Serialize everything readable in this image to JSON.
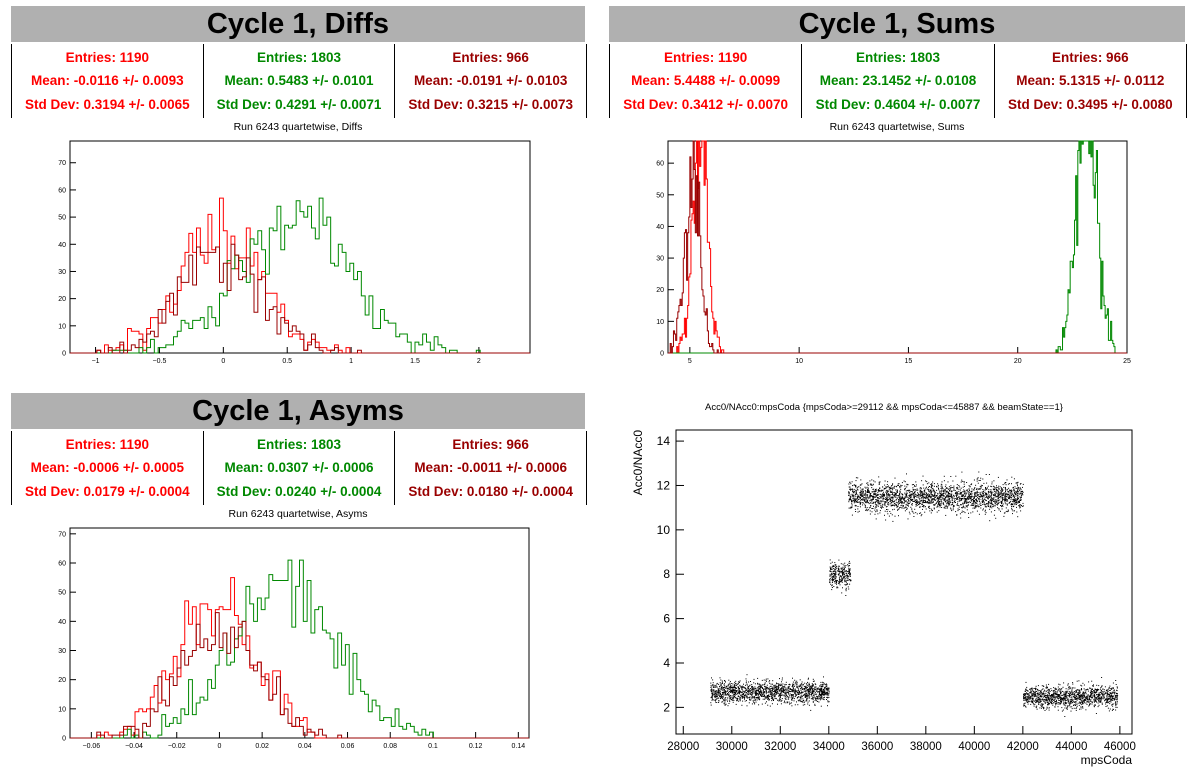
{
  "colors": {
    "red": "#ff0000",
    "green": "#008800",
    "darkred": "#990000",
    "title_bg": "#b0b0b0"
  },
  "panels": [
    {
      "title": "Cycle 1, Diffs",
      "stats": [
        {
          "entries": "Entries: 1190",
          "mean": "Mean: -0.0116 +/- 0.0093",
          "std": "Std Dev: 0.3194 +/- 0.0065",
          "color": "#ff0000"
        },
        {
          "entries": "Entries: 1803",
          "mean": "Mean: 0.5483 +/- 0.0101",
          "std": "Std Dev: 0.4291 +/- 0.0071",
          "color": "#008800"
        },
        {
          "entries": "Entries: 966",
          "mean": "Mean: -0.0191 +/- 0.0103",
          "std": "Std Dev: 0.3215 +/- 0.0073",
          "color": "#990000"
        }
      ],
      "subtitle": "Run 6243 quartetwise, Diffs"
    },
    {
      "title": "Cycle 1, Sums",
      "stats": [
        {
          "entries": "Entries: 1190",
          "mean": "Mean: 5.4488 +/- 0.0099",
          "std": "Std Dev: 0.3412 +/- 0.0070",
          "color": "#ff0000"
        },
        {
          "entries": "Entries: 1803",
          "mean": "Mean: 23.1452 +/- 0.0108",
          "std": "Std Dev: 0.4604 +/- 0.0077",
          "color": "#008800"
        },
        {
          "entries": "Entries: 966",
          "mean": "Mean: 5.1315 +/- 0.0112",
          "std": "Std Dev: 0.3495 +/- 0.0080",
          "color": "#990000"
        }
      ],
      "subtitle": "Run 6243 quartetwise, Sums"
    },
    {
      "title": "Cycle 1, Asyms",
      "stats": [
        {
          "entries": "Entries: 1190",
          "mean": "Mean: -0.0006 +/- 0.0005",
          "std": "Std Dev: 0.0179 +/- 0.0004",
          "color": "#ff0000"
        },
        {
          "entries": "Entries: 1803",
          "mean": "Mean: 0.0307 +/- 0.0006",
          "std": "Std Dev: 0.0240 +/- 0.0004",
          "color": "#008800"
        },
        {
          "entries": "Entries: 966",
          "mean": "Mean: -0.0011 +/- 0.0006",
          "std": "Std Dev: 0.0180 +/- 0.0004",
          "color": "#990000"
        }
      ],
      "subtitle": "Run 6243 quartetwise, Asyms"
    }
  ],
  "chart_data": [
    {
      "type": "histogram",
      "name": "diffs",
      "xlim": [
        -1.2,
        2.4
      ],
      "ylim": [
        0,
        78
      ],
      "xticks": [
        -1,
        -0.5,
        0,
        0.5,
        1,
        1.5,
        2
      ],
      "xtick_labels": [
        "−1",
        "−0.5",
        "0",
        "0.5",
        "1",
        "1.5",
        "2"
      ],
      "yticks": [
        0,
        10,
        20,
        30,
        40,
        50,
        60,
        70
      ],
      "series": [
        {
          "mean": -0.0116,
          "std": 0.3194,
          "entries": 1190,
          "color": "#ff0000"
        },
        {
          "mean": 0.5483,
          "std": 0.4291,
          "entries": 1803,
          "color": "#008800"
        },
        {
          "mean": -0.0191,
          "std": 0.3215,
          "entries": 966,
          "color": "#990000"
        }
      ]
    },
    {
      "type": "histogram",
      "name": "sums",
      "xlim": [
        4,
        25
      ],
      "ylim": [
        0,
        67
      ],
      "xticks": [
        5,
        10,
        15,
        20,
        25
      ],
      "xtick_labels": [
        "5",
        "10",
        "15",
        "20",
        "25"
      ],
      "yticks": [
        0,
        10,
        20,
        30,
        40,
        50,
        60
      ],
      "series": [
        {
          "mean": 5.4488,
          "std": 0.3412,
          "entries": 1190,
          "color": "#ff0000"
        },
        {
          "mean": 23.1452,
          "std": 0.4604,
          "entries": 1803,
          "color": "#008800"
        },
        {
          "mean": 5.1315,
          "std": 0.3495,
          "entries": 966,
          "color": "#990000"
        }
      ]
    },
    {
      "type": "histogram",
      "name": "asyms",
      "xlim": [
        -0.07,
        0.145
      ],
      "ylim": [
        0,
        72
      ],
      "xticks": [
        -0.06,
        -0.04,
        -0.02,
        0,
        0.02,
        0.04,
        0.06,
        0.08,
        0.1,
        0.12,
        0.14
      ],
      "xtick_labels": [
        "−0.06",
        "−0.04",
        "−0.02",
        "0",
        "0.02",
        "0.04",
        "0.06",
        "0.08",
        "0.1",
        "0.12",
        "0.14"
      ],
      "yticks": [
        0,
        10,
        20,
        30,
        40,
        50,
        60,
        70
      ],
      "series": [
        {
          "mean": -0.0006,
          "std": 0.0179,
          "entries": 1190,
          "color": "#ff0000"
        },
        {
          "mean": 0.0307,
          "std": 0.024,
          "entries": 1803,
          "color": "#008800"
        },
        {
          "mean": -0.0011,
          "std": 0.018,
          "entries": 966,
          "color": "#990000"
        }
      ]
    },
    {
      "type": "scatter",
      "name": "acc0",
      "title": "Acc0/NAcc0:mpsCoda {mpsCoda>=29112 && mpsCoda<=45887 && beamState==1}",
      "xlabel": "mpsCoda",
      "ylabel": "Acc0/NAcc0",
      "xlim": [
        27700,
        46500
      ],
      "ylim": [
        0.8,
        14.5
      ],
      "xticks": [
        28000,
        30000,
        32000,
        34000,
        36000,
        38000,
        40000,
        42000,
        44000,
        46000
      ],
      "yticks": [
        2,
        4,
        6,
        8,
        10,
        12,
        14
      ],
      "clusters": [
        {
          "x": [
            29112,
            34000
          ],
          "y_center": 2.7,
          "y_spread": 0.45
        },
        {
          "x": [
            34000,
            34900
          ],
          "y_center": 8.0,
          "y_spread": 0.55
        },
        {
          "x": [
            34800,
            42000
          ],
          "y_center": 11.5,
          "y_spread": 0.6
        },
        {
          "x": [
            42000,
            45887
          ],
          "y_center": 2.5,
          "y_spread": 0.45
        }
      ]
    }
  ]
}
